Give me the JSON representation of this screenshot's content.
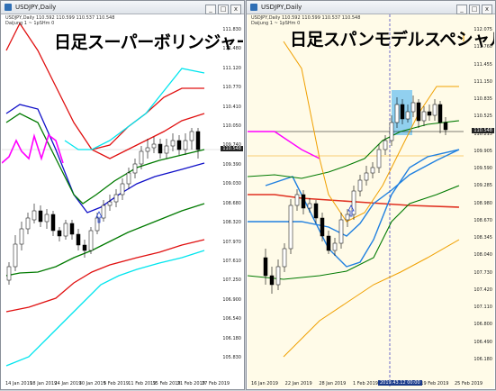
{
  "left": {
    "title": "USDJPY,Daily",
    "info1": "USDJPY,Daily 110.592 110.599 110.537 110.548",
    "info2": "Daijung 1 ~ 1pSHm 0",
    "banner": "日足スーパーボリンジャー",
    "price_tag": "110.548",
    "yticks": [
      "111.830",
      "111.480",
      "111.120",
      "110.770",
      "110.410",
      "110.050",
      "109.740",
      "109.390",
      "109.030",
      "108.680",
      "108.320",
      "107.970",
      "107.610",
      "107.250",
      "106.900",
      "106.540",
      "106.180",
      "105.830"
    ],
    "xticks": [
      "14 Jan 2019",
      "18 Jan 2019",
      "24 Jan 2019",
      "30 Jan 2019",
      "5 Feb 2019",
      "11 Feb 2019",
      "15 Feb 2019",
      "21 Feb 2019",
      "27 Feb 2019"
    ]
  },
  "right": {
    "title": "USDJPY,Daily",
    "info1": "USDJPY,Daily 110.592 110.599 110.537 110.548",
    "info2": "Daijung 1 ~ 1pSHm 0",
    "banner": "日足スパンモデルスペシャル",
    "price_tag": "110.548",
    "highlight_date": "2019.43.12 00:00",
    "yticks": [
      "112.075",
      "111.760",
      "111.455",
      "111.150",
      "110.835",
      "110.525",
      "110.215",
      "109.905",
      "109.590",
      "109.285",
      "108.980",
      "108.670",
      "108.345",
      "108.040",
      "107.730",
      "107.420",
      "107.110",
      "106.800",
      "106.490",
      "106.180"
    ],
    "xticks": [
      "16 Jan 2019",
      "22 Jan 2019",
      "28 Jan 2019",
      "1 Feb 2019",
      "7",
      "2019.43.12 00:00",
      "19 Feb 2019",
      "25 Feb 2019"
    ]
  },
  "window_buttons": [
    "_",
    "□",
    "x"
  ],
  "colors": {
    "bull": "#ffffff",
    "bear": "#000000",
    "bb_center": "#007a00",
    "bb_1": "#1010c8",
    "bb_2": "#e01010",
    "bb_3": "#00e5ee",
    "magenta": "#ff00ff",
    "span_red": "#e03020",
    "span_blue": "#2080e0",
    "orange": "#f0a000"
  }
}
